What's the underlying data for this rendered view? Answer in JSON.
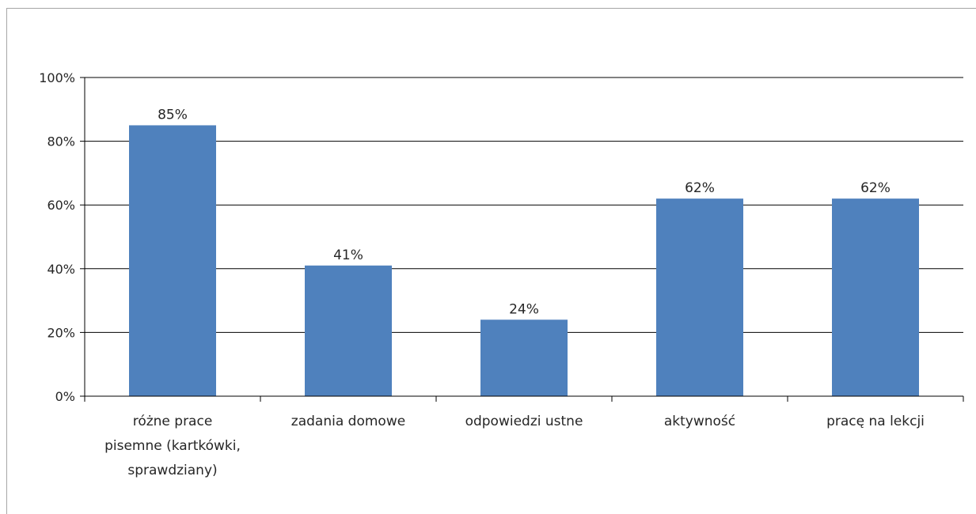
{
  "chart_data": {
    "type": "bar",
    "categories": [
      [
        "różne prace",
        "pisemne (kartkówki,",
        "sprawdziany)"
      ],
      [
        "zadania domowe"
      ],
      [
        "odpowiedzi ustne"
      ],
      [
        "aktywność"
      ],
      [
        "pracę na lekcji"
      ]
    ],
    "values": [
      85,
      41,
      24,
      62,
      62
    ],
    "data_labels": [
      "85%",
      "41%",
      "24%",
      "62%",
      "62%"
    ],
    "y_ticks": [
      "0%",
      "20%",
      "40%",
      "60%",
      "80%",
      "100%"
    ],
    "ylim": [
      0,
      100
    ],
    "grid": true,
    "bar_color": "#4f81bd",
    "title": "",
    "xlabel": "",
    "ylabel": ""
  }
}
